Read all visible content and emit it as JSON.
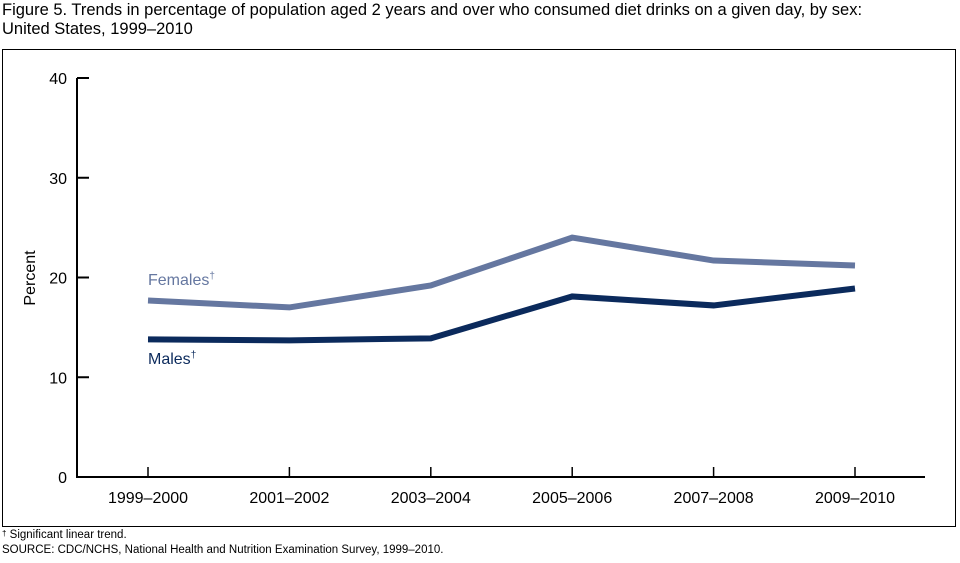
{
  "title_line1": "Figure 5. Trends in percentage of population aged 2 years and over who consumed diet drinks on a given day, by sex:",
  "title_line2": "United States, 1999–2010",
  "footnote_symbol": "†",
  "footnote_text": "Significant linear trend.",
  "source": "SOURCE: CDC/NCHS, National Health and Nutrition Examination Survey, 1999–2010.",
  "chart_data": {
    "type": "line",
    "title": "Trends in percentage of population aged 2 years and over who consumed diet drinks on a given day, by sex: United States, 1999–2010",
    "xlabel": "",
    "ylabel": "Percent",
    "ylim": [
      0,
      40
    ],
    "yticks": [
      0,
      10,
      20,
      30,
      40
    ],
    "grid": false,
    "categories": [
      "1999–2000",
      "2001–2002",
      "2003–2004",
      "2005–2006",
      "2007–2008",
      "2009–2010"
    ],
    "series": [
      {
        "name": "Females",
        "label": "Females",
        "marker": "†",
        "color": "#6577a0",
        "values": [
          17.7,
          17.0,
          19.2,
          24.0,
          21.7,
          21.2
        ]
      },
      {
        "name": "Males",
        "label": "Males",
        "marker": "†",
        "color": "#0b2a5c",
        "values": [
          13.8,
          13.7,
          13.9,
          18.1,
          17.2,
          18.9
        ]
      }
    ],
    "legend": "inline-left"
  }
}
